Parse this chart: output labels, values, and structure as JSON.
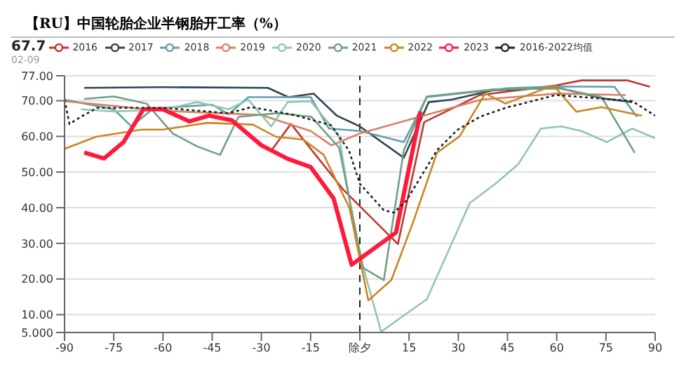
{
  "chart_data": {
    "type": "line",
    "title": "【RU】中国轮胎企业半钢胎开工率（%）",
    "annotations": [
      "67.7",
      "02-09"
    ],
    "legend": "top",
    "grid": "y",
    "line_style": "solid",
    "xlim": [
      -90,
      90
    ],
    "xticks": [
      -90,
      -75,
      -60,
      -45,
      -30,
      -15,
      {
        "value": 0,
        "label": "除夕"
      },
      15,
      30,
      45,
      60,
      75,
      90
    ],
    "ylim": [
      5,
      77
    ],
    "yticks": [
      {
        "value": 5,
        "label": "5.000"
      },
      {
        "value": 10,
        "label": "10.00"
      },
      {
        "value": 20,
        "label": "20.00"
      },
      {
        "value": 30,
        "label": "30.00"
      },
      {
        "value": 40,
        "label": "40.00"
      },
      {
        "value": 50,
        "label": "50.00"
      },
      {
        "value": 60,
        "label": "60.00"
      },
      {
        "value": 70,
        "label": "70.00"
      },
      {
        "value": 77,
        "label": "77.00"
      }
    ],
    "ref_lines": [
      {
        "axis": "x",
        "value": 0,
        "line_style": "dashed",
        "color": "#222222"
      }
    ],
    "series": [
      {
        "name": "2016",
        "color": "#c23531",
        "x": [
          -27,
          -21,
          -5,
          11.6,
          19.6,
          36.6,
          59.8,
          67.5,
          81.5,
          88.4
        ],
        "values": [
          56,
          63.5,
          45,
          29.8,
          64,
          71.6,
          74.3,
          75.7,
          75.7,
          73.9
        ]
      },
      {
        "name": "2017",
        "color": "#2f4554",
        "x": [
          -84,
          -60,
          -28,
          -21.8,
          -14.1,
          -7,
          0,
          13.4,
          21,
          28,
          41,
          60.6,
          73.7,
          83
        ],
        "values": [
          73.6,
          73.8,
          73.6,
          71,
          72,
          65.8,
          62.8,
          54,
          69.6,
          70.3,
          73,
          73.6,
          70.7,
          69.6
        ]
      },
      {
        "name": "2018",
        "color": "#61a0a8",
        "x": [
          -90,
          -75,
          -69.6,
          -63,
          -45,
          -40,
          -34,
          -15,
          -9.4,
          0,
          13.4,
          20.4,
          45,
          60,
          77.6,
          84.5
        ],
        "values": [
          70.3,
          67.6,
          62.8,
          67.8,
          68.9,
          66.2,
          71,
          71,
          62.2,
          61.5,
          58.4,
          71,
          73.5,
          74,
          73.9,
          65.5
        ]
      },
      {
        "name": "2019",
        "color": "#d48265",
        "x": [
          -90,
          -60.4,
          -30,
          -15,
          -8.7,
          0,
          37,
          60,
          81
        ],
        "values": [
          69.9,
          67.2,
          66,
          61.5,
          57.5,
          60.8,
          70.3,
          72,
          71.6
        ]
      },
      {
        "name": "2020",
        "color": "#91c7ae",
        "x": [
          -85,
          -75,
          -60,
          -49.6,
          -40,
          -34,
          -27,
          -22,
          -15,
          -6.3,
          -1,
          6.5,
          14.2,
          20.4,
          33.5,
          41.3,
          48.2,
          55.2,
          61.4,
          67.5,
          75.3,
          83,
          90
        ],
        "values": [
          67.6,
          67,
          67.5,
          69.6,
          67.6,
          70.3,
          62.8,
          69.6,
          69.9,
          60,
          30,
          5.2,
          10.3,
          14.3,
          41.3,
          46.7,
          52.1,
          62.2,
          62.8,
          61.5,
          58.4,
          62.2,
          59.5
        ]
      },
      {
        "name": "2021",
        "color": "#749f83",
        "x": [
          -84,
          -75,
          -65,
          -57,
          -49.6,
          -42.6,
          -37,
          -25,
          -14.8,
          -6.3,
          1,
          7.3,
          13.4,
          20.4,
          41,
          61.4,
          73.7,
          83.8
        ],
        "values": [
          70.5,
          71.2,
          69.2,
          60.8,
          57.2,
          54.8,
          65.5,
          66.5,
          65.5,
          56.8,
          23.1,
          19.7,
          56.1,
          71.2,
          73.2,
          73.4,
          71,
          55.4
        ]
      },
      {
        "name": "2022",
        "color": "#ca8622",
        "x": [
          -90,
          -80.4,
          -66.5,
          -60,
          -46.5,
          -32.6,
          -25.6,
          -17.2,
          -11,
          -3.2,
          2.6,
          9.6,
          16.5,
          23.5,
          30.4,
          38.2,
          44.4,
          59,
          66,
          73.7,
          86
        ],
        "values": [
          56.5,
          59.9,
          61.9,
          61.9,
          63.8,
          63.3,
          59.9,
          59.1,
          54.8,
          40,
          14,
          19.7,
          36.6,
          55.4,
          60,
          72,
          69.2,
          74.3,
          66.9,
          68.2,
          65.8
        ]
      },
      {
        "name": "2023",
        "color": "#ff1a3c",
        "x": [
          -84,
          -78,
          -72,
          -66,
          -60,
          -52,
          -46,
          -39,
          -30,
          -22,
          -15,
          -8,
          -2.5,
          11,
          18.5
        ],
        "values": [
          55.5,
          53.8,
          58.4,
          67.6,
          67.6,
          64.2,
          65.8,
          64.5,
          57.5,
          53.7,
          51.4,
          42.6,
          24,
          33,
          67
        ]
      },
      {
        "name": "2016-2022均值",
        "color": "#222222",
        "line_style": "dotted",
        "x": [
          -90,
          -88.5,
          -85,
          -80,
          -60,
          -40,
          -33,
          -20,
          -8.7,
          -3.3,
          0,
          7.3,
          10.4,
          14.2,
          23.5,
          29.7,
          36.6,
          44.4,
          59.8,
          72.2,
          83,
          90
        ],
        "values": [
          70.3,
          63.5,
          65.5,
          68,
          68,
          66.5,
          68.2,
          66,
          63.1,
          56,
          46.7,
          39.3,
          38.6,
          42,
          56.1,
          61.8,
          65.5,
          68,
          71.6,
          70.7,
          69.9,
          65.8
        ]
      }
    ]
  }
}
